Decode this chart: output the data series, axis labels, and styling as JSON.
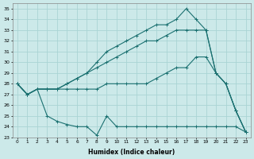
{
  "xlabel": "Humidex (Indice chaleur)",
  "background_color": "#cce9e9",
  "line_color": "#1a7070",
  "grid_color": "#aad4d4",
  "xlim": [
    -0.5,
    23.5
  ],
  "ylim": [
    23,
    35.5
  ],
  "yticks": [
    23,
    24,
    25,
    26,
    27,
    28,
    29,
    30,
    31,
    32,
    33,
    34,
    35
  ],
  "xticks": [
    0,
    1,
    2,
    3,
    4,
    5,
    6,
    7,
    8,
    9,
    10,
    11,
    12,
    13,
    14,
    15,
    16,
    17,
    18,
    19,
    20,
    21,
    22,
    23
  ],
  "series": [
    {
      "x": [
        0,
        1,
        2,
        3,
        4,
        5,
        6,
        7,
        8,
        9,
        10,
        11,
        12,
        13,
        14,
        15,
        16,
        17,
        18,
        19,
        20,
        21,
        22,
        23
      ],
      "y": [
        28,
        27,
        27.5,
        25,
        24.5,
        24.2,
        24,
        24,
        23.2,
        25,
        24,
        24,
        24,
        24,
        24,
        24,
        24,
        24,
        24,
        24,
        24,
        24,
        24,
        23.5
      ]
    },
    {
      "x": [
        0,
        1,
        2,
        3,
        4,
        5,
        6,
        7,
        8,
        9,
        10,
        11,
        12,
        13,
        14,
        15,
        16,
        17,
        18,
        19,
        20,
        21,
        22,
        23
      ],
      "y": [
        28,
        27,
        27.5,
        27.5,
        27.5,
        27.5,
        27.5,
        27.5,
        27.5,
        28,
        28,
        28,
        28,
        28,
        28.5,
        29,
        29.5,
        29.5,
        30.5,
        30.5,
        29,
        28,
        25.5,
        23.5
      ]
    },
    {
      "x": [
        0,
        1,
        2,
        3,
        4,
        5,
        6,
        7,
        8,
        9,
        10,
        11,
        12,
        13,
        14,
        15,
        16,
        17,
        18,
        19,
        20,
        21,
        22,
        23
      ],
      "y": [
        28,
        27,
        27.5,
        27.5,
        27.5,
        28,
        28.5,
        29,
        29.5,
        30,
        30.5,
        31,
        31.5,
        32,
        32,
        32.5,
        33,
        33,
        33,
        33,
        29,
        28,
        25.5,
        23.5
      ]
    },
    {
      "x": [
        0,
        1,
        2,
        3,
        4,
        5,
        6,
        7,
        8,
        9,
        10,
        11,
        12,
        13,
        14,
        15,
        16,
        17,
        18,
        19,
        20,
        21,
        22,
        23
      ],
      "y": [
        28,
        27,
        27.5,
        27.5,
        27.5,
        28,
        28.5,
        29,
        30,
        31,
        31.5,
        32,
        32.5,
        33,
        33.5,
        33.5,
        34,
        35,
        34,
        33,
        29,
        28,
        25.5,
        23.5
      ]
    }
  ]
}
